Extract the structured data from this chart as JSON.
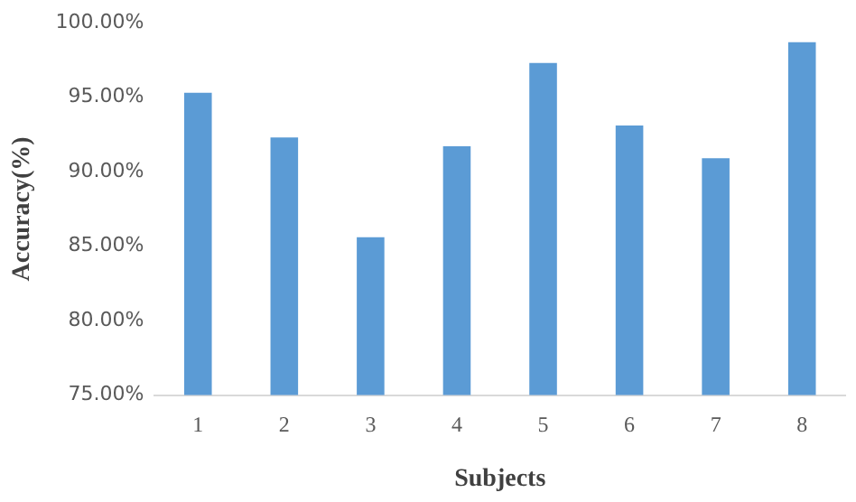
{
  "chart_data": {
    "type": "bar",
    "xlabel": "Subjects",
    "ylabel": "Accuracy(%)",
    "categories": [
      "1",
      "2",
      "3",
      "4",
      "5",
      "6",
      "7",
      "8"
    ],
    "values": [
      95.3,
      92.3,
      85.6,
      91.7,
      97.3,
      93.1,
      90.9,
      98.7
    ],
    "color": "#5b9bd5",
    "ylim": [
      75,
      100
    ],
    "yticks": [
      {
        "value": 75,
        "label": "75.00%"
      },
      {
        "value": 80,
        "label": "80.00%"
      },
      {
        "value": 85,
        "label": "85.00%"
      },
      {
        "value": 90,
        "label": "90.00%"
      },
      {
        "value": 95,
        "label": "95.00%"
      },
      {
        "value": 100,
        "label": "100.00%"
      }
    ],
    "grid": false,
    "legend": false
  }
}
